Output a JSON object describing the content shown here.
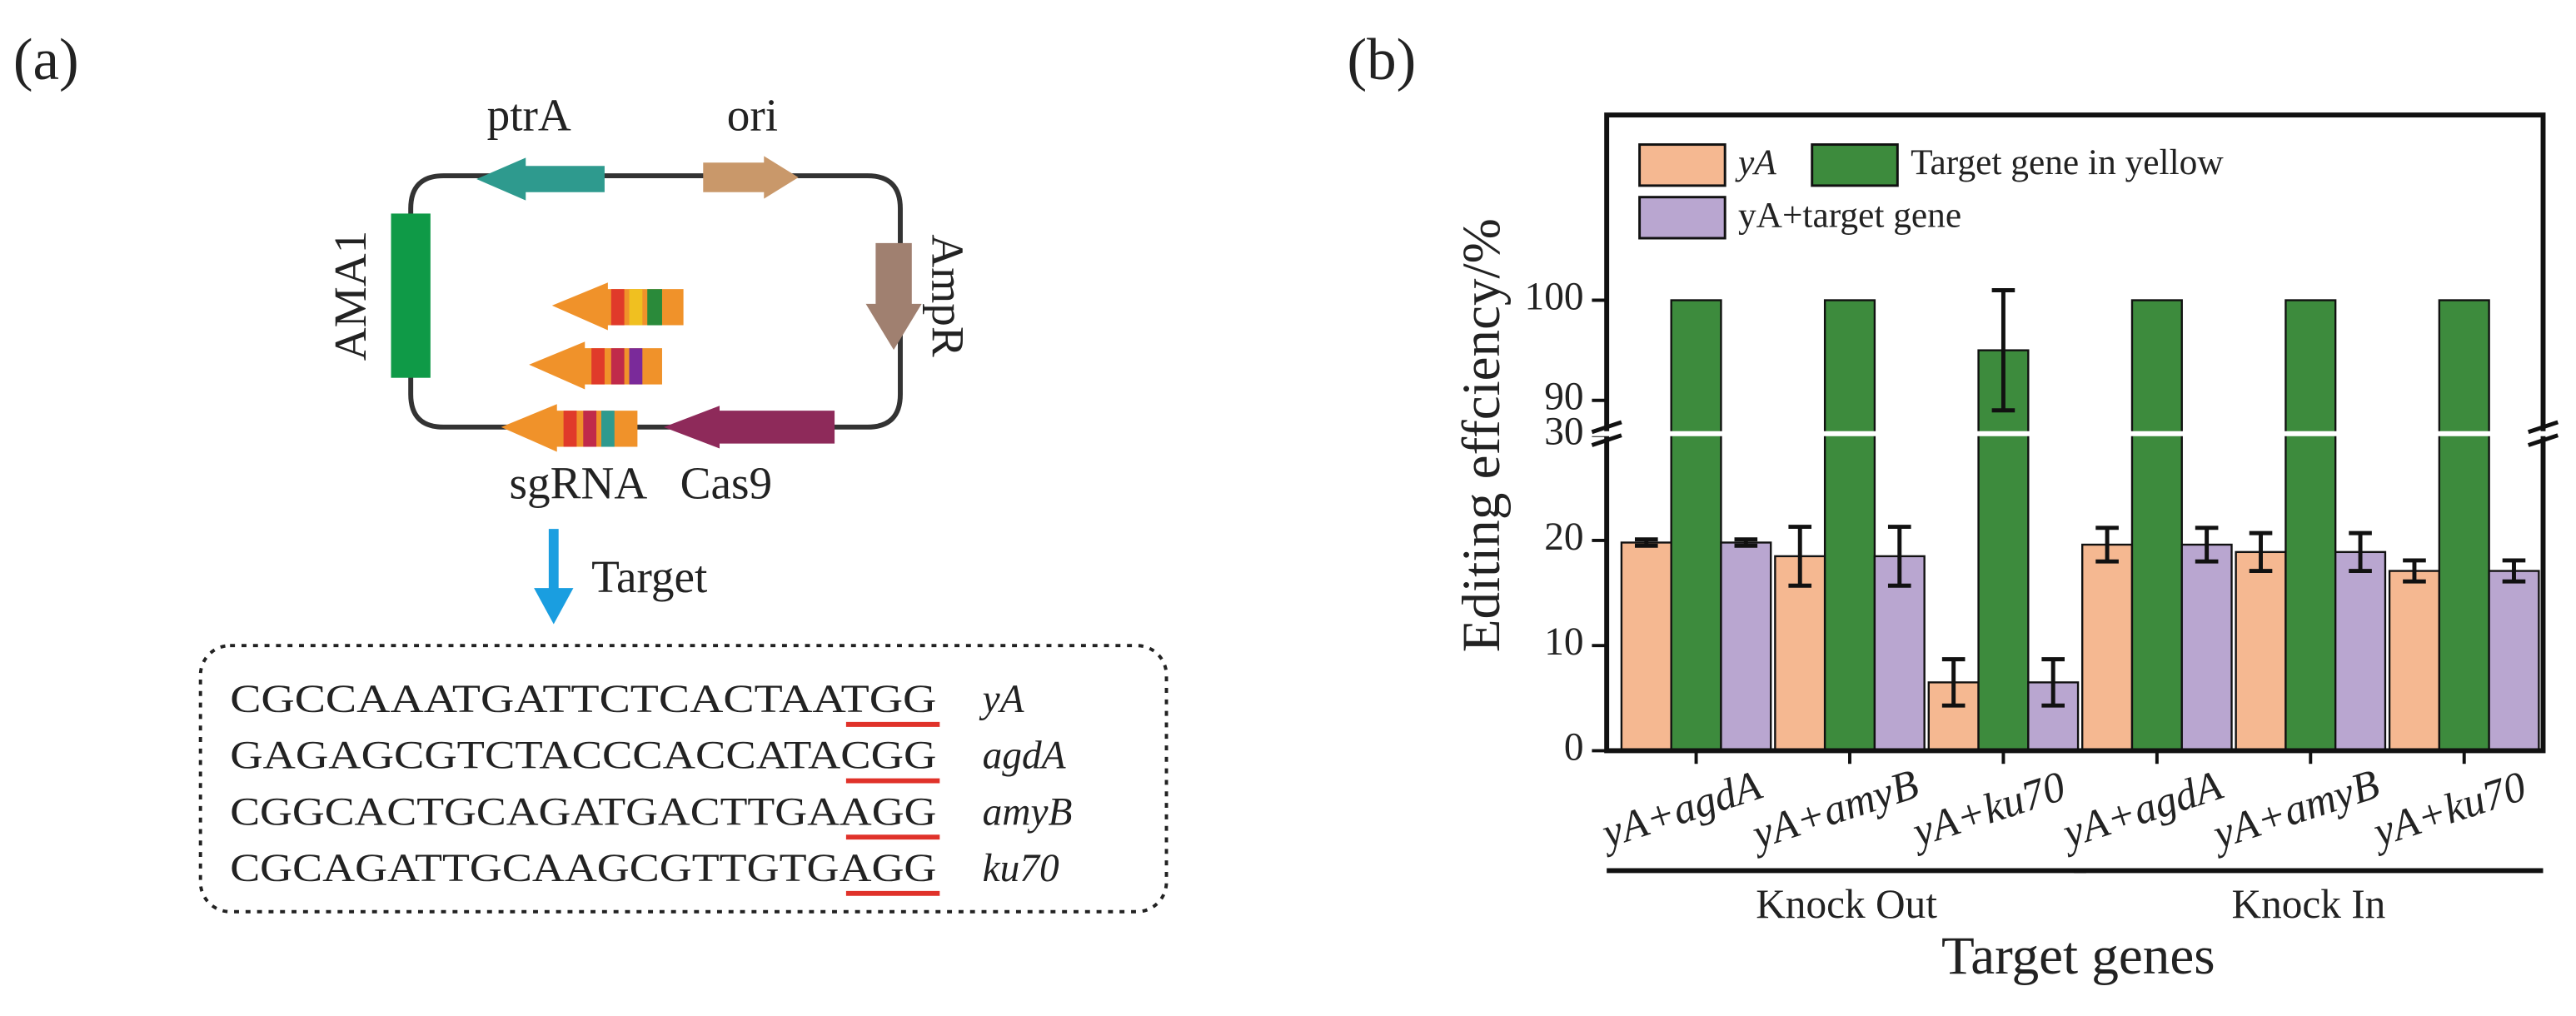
{
  "panel_a": {
    "label": "(a)",
    "plasmid": {
      "ptrA": "ptrA",
      "ori": "ori",
      "AMA1": "AMA1",
      "AmpR": "AmpR",
      "sgRNA": "sgRNA",
      "Cas9": "Cas9"
    },
    "arrow_label": "Target",
    "sequences": [
      [
        "CGCCAAATGATTCTCACTAATGG",
        "yA"
      ],
      [
        "GAGAGCGTCTACCCACCATACGG",
        "agdA"
      ],
      [
        "CGGCACTGCAGATGACTTGAAGG",
        "amyB"
      ],
      [
        "CGCAGATTGCAAGCGTTGTGAGG",
        "ku70"
      ]
    ]
  },
  "panel_b_label": "(b)",
  "chart_data": {
    "type": "bar",
    "ylabel": "Editing effciency/%",
    "xlabel": "Target genes",
    "categories": [
      "yA+agdA",
      "yA+amyB",
      "yA+ku70",
      "yA+agdA",
      "yA+amyB",
      "yA+ku70"
    ],
    "groups": [
      {
        "name": "Knock Out",
        "span": [
          0,
          2
        ]
      },
      {
        "name": "Knock In",
        "span": [
          3,
          5
        ]
      }
    ],
    "series": [
      {
        "name": "yA",
        "color": "#f5b891",
        "values": [
          19.8,
          18.5,
          6.5,
          19.6,
          18.9,
          17.1
        ],
        "errors": [
          0.3,
          2.8,
          2.2,
          1.6,
          1.8,
          1.0
        ]
      },
      {
        "name": "Target gene in yellow",
        "color": "#3d8b3d",
        "values": [
          100,
          100,
          95,
          100,
          100,
          100
        ],
        "errors": [
          null,
          null,
          6,
          null,
          null,
          null
        ]
      },
      {
        "name": "yA+target gene",
        "color": "#b9a6d0",
        "values": [
          19.8,
          18.5,
          6.5,
          19.6,
          18.9,
          17.1
        ],
        "errors": [
          0.3,
          2.8,
          2.2,
          1.6,
          1.8,
          1.0
        ]
      }
    ],
    "ylim": [
      0,
      30
    ],
    "yticks": [
      0,
      10,
      20,
      30
    ],
    "ylim_upper": [
      87,
      118.5
    ],
    "yticks_upper": [
      90,
      100
    ],
    "legend": "top-left"
  }
}
